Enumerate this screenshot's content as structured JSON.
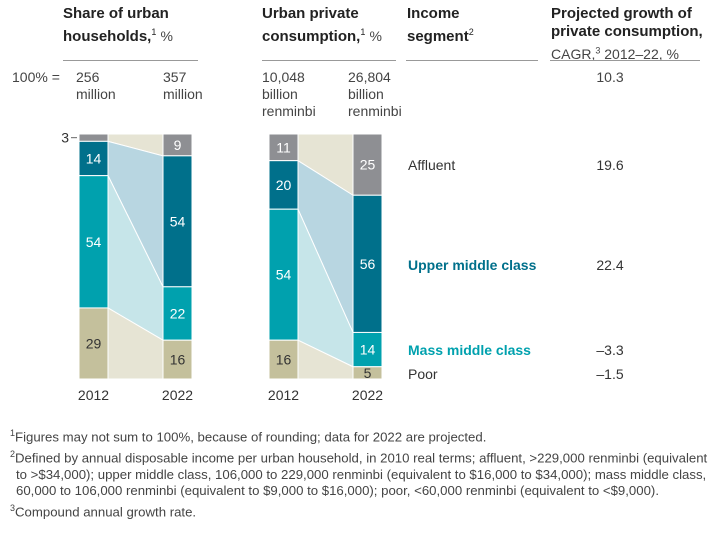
{
  "headers": {
    "households_title": "Share of urban households,",
    "households_sup": "1",
    "households_unit": "%",
    "consumption_title": "Urban private consumption,",
    "consumption_sup": "1",
    "consumption_unit": "%",
    "segment_title": "Income segment",
    "segment_sup": "2",
    "growth_title": "Projected growth of private consumption,",
    "growth_sub": "CAGR,",
    "growth_sup": "3",
    "growth_sub2": "2012–22, %"
  },
  "totals": {
    "label": "100% =",
    "households_2012": [
      "256",
      "million"
    ],
    "households_2022": [
      "357",
      "million"
    ],
    "consumption_2012": [
      "10,048",
      "billion",
      "renminbi"
    ],
    "consumption_2022": [
      "26,804",
      "billion",
      "renminbi"
    ],
    "growth_total": "10.3"
  },
  "segments": [
    {
      "name": "Affluent",
      "growth": "19.6",
      "color": "#8e8f93",
      "band": "#e6e4d4",
      "bold": false
    },
    {
      "name": "Upper middle class",
      "growth": "22.4",
      "color": "#00708b",
      "band": "#b8d6e1",
      "bold": true
    },
    {
      "name": "Mass middle class",
      "growth": "–3.3",
      "color": "#00a1ae",
      "band": "#c6e5e9",
      "bold": true
    },
    {
      "name": "Poor",
      "growth": "–1.5",
      "color": "#c4c09c",
      "band": "#e6e4d4",
      "bold": false
    }
  ],
  "chart_data": [
    {
      "type": "bar",
      "title": "Share of urban households, %",
      "categories": [
        "2012",
        "2022"
      ],
      "series": [
        {
          "name": "Affluent",
          "values": [
            3,
            9
          ]
        },
        {
          "name": "Upper middle class",
          "values": [
            14,
            54
          ]
        },
        {
          "name": "Mass middle class",
          "values": [
            54,
            22
          ]
        },
        {
          "name": "Poor",
          "values": [
            29,
            16
          ]
        }
      ]
    },
    {
      "type": "bar",
      "title": "Urban private consumption, %",
      "categories": [
        "2012",
        "2022"
      ],
      "series": [
        {
          "name": "Affluent",
          "values": [
            11,
            25
          ]
        },
        {
          "name": "Upper middle class",
          "values": [
            20,
            56
          ]
        },
        {
          "name": "Mass middle class",
          "values": [
            54,
            14
          ]
        },
        {
          "name": "Poor",
          "values": [
            16,
            5
          ]
        }
      ]
    }
  ],
  "footnotes": [
    {
      "sup": "1",
      "text": "Figures may not sum to 100%, because of rounding; data for 2022 are projected."
    },
    {
      "sup": "2",
      "text": "Defined by annual disposable income per urban household, in 2010 real terms; affluent, >229,000 renminbi (equivalent to >$34,000); upper middle class, 106,000 to 229,000 renminbi (equivalent to $16,000 to $34,000); mass middle class, 60,000 to 106,000 renminbi (equivalent to $9,000 to $16,000); poor, <60,000 renminbi (equivalent to <$9,000)."
    },
    {
      "sup": "3",
      "text": "Compound annual growth rate."
    }
  ]
}
